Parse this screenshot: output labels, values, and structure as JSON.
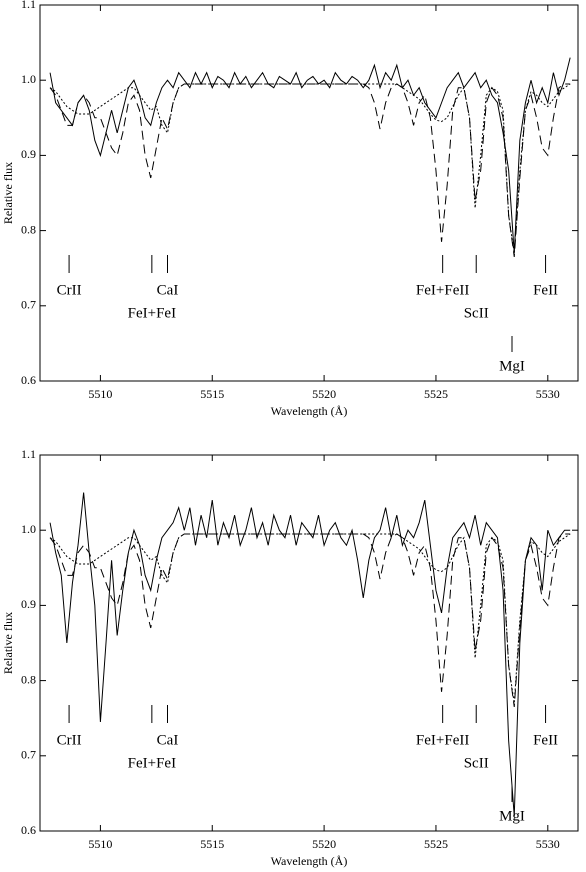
{
  "chart_data": [
    {
      "type": "line",
      "xlabel": "Wavelength (Å)",
      "ylabel": "Relative flux",
      "xlim": [
        5507.3,
        5531.35
      ],
      "ylim": [
        0.6,
        1.1
      ],
      "xticks": [
        5510,
        5515,
        5520,
        5525,
        5530
      ],
      "yticks": [
        0.6,
        0.7,
        0.8,
        0.9,
        {
          "value": 1,
          "label": "1.0"
        },
        1.1
      ],
      "x": [
        5507.75,
        5508,
        5508.25,
        5508.5,
        5508.75,
        5509,
        5509.25,
        5509.5,
        5509.75,
        5510,
        5510.25,
        5510.5,
        5510.75,
        5511,
        5511.25,
        5511.5,
        5511.75,
        5512,
        5512.25,
        5512.5,
        5512.75,
        5513,
        5513.25,
        5513.5,
        5513.75,
        5514,
        5514.25,
        5514.5,
        5514.75,
        5515,
        5515.25,
        5515.5,
        5515.75,
        5516,
        5516.25,
        5516.5,
        5516.75,
        5517,
        5517.25,
        5517.5,
        5517.75,
        5518,
        5518.25,
        5518.5,
        5518.75,
        5519,
        5519.25,
        5519.5,
        5519.75,
        5520,
        5520.25,
        5520.5,
        5520.75,
        5521,
        5521.25,
        5521.5,
        5521.75,
        5522,
        5522.25,
        5522.5,
        5522.75,
        5523,
        5523.25,
        5523.5,
        5523.75,
        5524,
        5524.25,
        5524.5,
        5524.75,
        5525,
        5525.25,
        5525.5,
        5525.75,
        5526,
        5526.25,
        5526.5,
        5526.75,
        5527,
        5527.25,
        5527.5,
        5527.75,
        5528,
        5528.25,
        5528.5,
        5528.75,
        5529,
        5529.25,
        5529.5,
        5529.75,
        5530,
        5530.25,
        5530.5,
        5530.75,
        5531
      ],
      "series": [
        {
          "color": "#000000",
          "dash": "solid",
          "values": [
            1.01,
            0.97,
            0.96,
            0.95,
            0.94,
            0.97,
            0.98,
            0.96,
            0.92,
            0.9,
            0.93,
            0.96,
            0.93,
            0.96,
            0.99,
            1.0,
            0.98,
            0.95,
            0.94,
            0.97,
            0.99,
            1.0,
            0.99,
            1.01,
            1.0,
            0.99,
            1.01,
            0.995,
            1.01,
            0.99,
            1.005,
            1.0,
            0.99,
            1.01,
            0.995,
            1.005,
            0.99,
            1.0,
            1.01,
            0.995,
            0.99,
            1.005,
            1.0,
            0.995,
            1.01,
            0.99,
            1.0,
            1.005,
            0.995,
            1.0,
            0.99,
            1.01,
            1.0,
            0.995,
            1.005,
            1.0,
            0.99,
            1.0,
            1.02,
            0.99,
            1.01,
            1.0,
            1.02,
            0.99,
            1.0,
            0.98,
            0.99,
            0.97,
            0.96,
            0.95,
            0.97,
            0.99,
            1.0,
            1.01,
            0.99,
            1.0,
            1.01,
            0.99,
            1.0,
            0.98,
            0.97,
            0.93,
            0.88,
            0.77,
            0.92,
            0.97,
            1.0,
            0.97,
            0.99,
            0.97,
            1.01,
            0.98,
            1.0,
            1.03
          ]
        },
        {
          "color": "#000000",
          "dash": "dashed",
          "values": [
            0.99,
            0.98,
            0.96,
            0.94,
            0.94,
            0.97,
            0.98,
            0.97,
            0.95,
            0.95,
            0.93,
            0.91,
            0.9,
            0.93,
            0.97,
            0.98,
            0.96,
            0.9,
            0.87,
            0.91,
            0.95,
            0.935,
            0.97,
            0.99,
            0.995,
            0.995,
            0.995,
            0.995,
            0.995,
            0.995,
            0.995,
            0.995,
            0.995,
            0.995,
            0.995,
            0.995,
            0.995,
            0.995,
            0.995,
            0.995,
            0.995,
            0.995,
            0.995,
            0.995,
            0.995,
            0.995,
            0.995,
            0.995,
            0.995,
            0.995,
            0.995,
            0.995,
            0.995,
            0.995,
            0.995,
            0.995,
            0.995,
            0.99,
            0.97,
            0.935,
            0.97,
            0.99,
            0.995,
            0.99,
            0.97,
            0.94,
            0.97,
            0.98,
            0.95,
            0.88,
            0.785,
            0.86,
            0.96,
            0.99,
            0.99,
            0.95,
            0.84,
            0.88,
            0.97,
            0.99,
            0.98,
            0.95,
            0.82,
            0.765,
            0.87,
            0.96,
            0.98,
            0.95,
            0.91,
            0.9,
            0.95,
            0.99,
            0.995,
            0.995
          ]
        },
        {
          "color": "#000000",
          "dash": "dotted",
          "values": [
            0.99,
            0.985,
            0.975,
            0.965,
            0.96,
            0.955,
            0.955,
            0.955,
            0.96,
            0.965,
            0.97,
            0.975,
            0.98,
            0.985,
            0.99,
            0.99,
            0.98,
            0.97,
            0.96,
            0.965,
            0.94,
            0.93,
            0.97,
            0.99,
            0.995,
            0.995,
            0.995,
            0.995,
            0.995,
            0.995,
            0.995,
            0.995,
            0.995,
            0.995,
            0.995,
            0.995,
            0.995,
            0.995,
            0.995,
            0.995,
            0.995,
            0.995,
            0.995,
            0.995,
            0.995,
            0.995,
            0.995,
            0.995,
            0.995,
            0.995,
            0.995,
            0.995,
            0.995,
            0.995,
            0.995,
            0.995,
            0.995,
            0.995,
            0.995,
            0.995,
            0.995,
            0.995,
            0.995,
            0.99,
            0.985,
            0.98,
            0.975,
            0.965,
            0.955,
            0.947,
            0.945,
            0.95,
            0.965,
            0.98,
            0.99,
            0.95,
            0.83,
            0.9,
            0.98,
            0.99,
            0.985,
            0.96,
            0.82,
            0.77,
            0.88,
            0.96,
            0.985,
            0.98,
            0.97,
            0.965,
            0.975,
            0.985,
            0.99,
            0.995
          ]
        }
      ],
      "annotations": [
        {
          "text": "CrII",
          "x": 5508.6
        },
        {
          "text": "FeI+FeI",
          "x": 5512.3
        },
        {
          "text": "CaI",
          "x": 5513.0
        },
        {
          "text": "FeI+FeII",
          "x": 5525.3
        },
        {
          "text": "ScII",
          "x": 5526.8
        },
        {
          "text": "MgI",
          "x": 5528.4
        },
        {
          "text": "FeII",
          "x": 5529.9
        }
      ]
    },
    {
      "type": "line",
      "xlabel": "Wavelength (Å)",
      "ylabel": "Relative flux",
      "xlim": [
        5507.3,
        5531.35
      ],
      "ylim": [
        0.6,
        1.1
      ],
      "xticks": [
        5510,
        5515,
        5520,
        5525,
        5530
      ],
      "yticks": [
        0.6,
        0.7,
        0.8,
        0.9,
        {
          "value": 1,
          "label": "1.0"
        },
        1.1
      ],
      "x": [
        5507.75,
        5508,
        5508.25,
        5508.5,
        5508.75,
        5509,
        5509.25,
        5509.5,
        5509.75,
        5510,
        5510.25,
        5510.5,
        5510.75,
        5511,
        5511.25,
        5511.5,
        5511.75,
        5512,
        5512.25,
        5512.5,
        5512.75,
        5513,
        5513.25,
        5513.5,
        5513.75,
        5514,
        5514.25,
        5514.5,
        5514.75,
        5515,
        5515.25,
        5515.5,
        5515.75,
        5516,
        5516.25,
        5516.5,
        5516.75,
        5517,
        5517.25,
        5517.5,
        5517.75,
        5518,
        5518.25,
        5518.5,
        5518.75,
        5519,
        5519.25,
        5519.5,
        5519.75,
        5520,
        5520.25,
        5520.5,
        5520.75,
        5521,
        5521.25,
        5521.5,
        5521.75,
        5522,
        5522.25,
        5522.5,
        5522.75,
        5523,
        5523.25,
        5523.5,
        5523.75,
        5524,
        5524.25,
        5524.5,
        5524.75,
        5525,
        5525.25,
        5525.5,
        5525.75,
        5526,
        5526.25,
        5526.5,
        5526.75,
        5527,
        5527.25,
        5527.5,
        5527.75,
        5528,
        5528.25,
        5528.5,
        5528.75,
        5529,
        5529.25,
        5529.5,
        5529.75,
        5530,
        5530.25,
        5530.5,
        5530.75,
        5531
      ],
      "series": [
        {
          "color": "#000000",
          "dash": "solid",
          "values": [
            1.01,
            0.97,
            0.94,
            0.85,
            0.93,
            0.98,
            1.05,
            0.97,
            0.9,
            0.745,
            0.85,
            0.96,
            0.86,
            0.92,
            0.97,
            1.0,
            0.98,
            0.94,
            0.92,
            0.96,
            0.99,
            1.0,
            1.01,
            1.03,
            1.0,
            1.03,
            0.98,
            1.02,
            0.99,
            1.04,
            0.98,
            1.01,
            0.99,
            1.02,
            0.98,
            1.0,
            1.03,
            0.99,
            1.01,
            0.98,
            1.02,
            1.0,
            0.99,
            1.02,
            0.98,
            1.01,
            1.0,
            0.99,
            1.02,
            0.98,
            1.0,
            1.01,
            0.99,
            0.98,
            1.0,
            0.96,
            0.91,
            0.96,
            0.99,
            1.0,
            1.03,
            0.99,
            1.02,
            0.98,
            1.0,
            0.99,
            1.01,
            1.04,
            0.98,
            0.92,
            0.89,
            0.95,
            0.99,
            1.0,
            1.01,
            0.99,
            1.02,
            0.98,
            1.01,
            1.0,
            0.99,
            0.92,
            0.72,
            0.62,
            0.85,
            0.96,
            0.99,
            0.98,
            0.92,
            1.0,
            0.98,
            0.99,
            1.0,
            1.0
          ]
        },
        {
          "color": "#000000",
          "dash": "dashed",
          "values": [
            0.99,
            0.98,
            0.96,
            0.94,
            0.94,
            0.97,
            0.98,
            0.97,
            0.95,
            0.95,
            0.93,
            0.91,
            0.9,
            0.93,
            0.97,
            0.98,
            0.96,
            0.9,
            0.87,
            0.91,
            0.95,
            0.935,
            0.97,
            0.99,
            0.995,
            0.995,
            0.995,
            0.995,
            0.995,
            0.995,
            0.995,
            0.995,
            0.995,
            0.995,
            0.995,
            0.995,
            0.995,
            0.995,
            0.995,
            0.995,
            0.995,
            0.995,
            0.995,
            0.995,
            0.995,
            0.995,
            0.995,
            0.995,
            0.995,
            0.995,
            0.995,
            0.995,
            0.995,
            0.995,
            0.995,
            0.995,
            0.995,
            0.99,
            0.97,
            0.935,
            0.97,
            0.99,
            0.995,
            0.99,
            0.97,
            0.94,
            0.97,
            0.98,
            0.95,
            0.88,
            0.785,
            0.86,
            0.96,
            0.99,
            0.99,
            0.95,
            0.84,
            0.88,
            0.97,
            0.99,
            0.98,
            0.95,
            0.82,
            0.765,
            0.87,
            0.96,
            0.98,
            0.95,
            0.91,
            0.9,
            0.95,
            0.99,
            0.995,
            0.995
          ]
        },
        {
          "color": "#000000",
          "dash": "dotted",
          "values": [
            0.99,
            0.985,
            0.975,
            0.965,
            0.96,
            0.955,
            0.955,
            0.955,
            0.96,
            0.965,
            0.97,
            0.975,
            0.98,
            0.985,
            0.99,
            0.99,
            0.98,
            0.97,
            0.96,
            0.965,
            0.94,
            0.93,
            0.97,
            0.99,
            0.995,
            0.995,
            0.995,
            0.995,
            0.995,
            0.995,
            0.995,
            0.995,
            0.995,
            0.995,
            0.995,
            0.995,
            0.995,
            0.995,
            0.995,
            0.995,
            0.995,
            0.995,
            0.995,
            0.995,
            0.995,
            0.995,
            0.995,
            0.995,
            0.995,
            0.995,
            0.995,
            0.995,
            0.995,
            0.995,
            0.995,
            0.995,
            0.995,
            0.995,
            0.995,
            0.995,
            0.995,
            0.995,
            0.995,
            0.99,
            0.985,
            0.98,
            0.975,
            0.965,
            0.955,
            0.947,
            0.945,
            0.95,
            0.965,
            0.98,
            0.99,
            0.95,
            0.83,
            0.9,
            0.98,
            0.99,
            0.985,
            0.96,
            0.82,
            0.77,
            0.88,
            0.96,
            0.985,
            0.98,
            0.97,
            0.965,
            0.975,
            0.985,
            0.99,
            0.995
          ]
        }
      ],
      "annotations": [
        {
          "text": "CrII",
          "x": 5508.6
        },
        {
          "text": "FeI+FeI",
          "x": 5512.3
        },
        {
          "text": "CaI",
          "x": 5513.0
        },
        {
          "text": "FeI+FeII",
          "x": 5525.3
        },
        {
          "text": "ScII",
          "x": 5526.8
        },
        {
          "text": "MgI",
          "x": 5528.4
        },
        {
          "text": "FeII",
          "x": 5529.9
        }
      ]
    }
  ]
}
